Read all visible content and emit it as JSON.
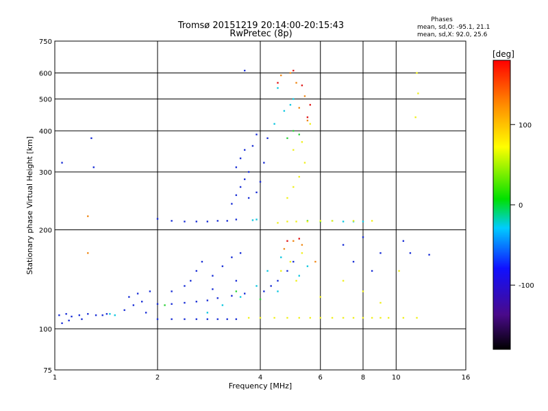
{
  "chart_data": {
    "type": "scatter",
    "title": "Tromsø 20151219 20:14:00-20:15:43",
    "subtitle": "RwPretec (8p)",
    "xlabel": "Frequency [MHz]",
    "ylabel": "Stationary phase Virtual Height [km]",
    "x_scale": "log",
    "y_scale": "log",
    "xlim": [
      1,
      16
    ],
    "ylim": [
      75,
      750
    ],
    "x_ticks": [
      1,
      2,
      4,
      6,
      8,
      10,
      16
    ],
    "y_ticks": [
      75,
      100,
      200,
      300,
      400,
      500,
      600,
      750
    ],
    "x_gridlines": [
      2,
      4,
      6,
      8,
      10
    ],
    "y_gridlines": [
      100,
      200,
      300,
      400,
      500,
      600
    ],
    "grid": true,
    "legend_placement": "top-right",
    "legend": {
      "title": "Phases",
      "lines": [
        "mean, sd,O: -95.1, 21.1",
        "mean, sd,X:  92.0, 25.6"
      ]
    },
    "colorbar": {
      "label": "[deg]",
      "range": [
        -180,
        180
      ],
      "ticks": [
        100,
        0,
        -100
      ],
      "colormap": "rainbow"
    },
    "series": [
      {
        "color": "#1a2fd6",
        "points": [
          [
            1.03,
            110
          ],
          [
            1.08,
            111
          ],
          [
            1.12,
            109
          ],
          [
            1.18,
            110
          ],
          [
            1.25,
            111
          ],
          [
            1.32,
            110
          ],
          [
            1.38,
            110
          ],
          [
            1.42,
            111
          ],
          [
            1.05,
            104
          ],
          [
            1.1,
            106
          ],
          [
            1.2,
            107
          ],
          [
            1.6,
            114
          ],
          [
            1.7,
            118
          ],
          [
            1.8,
            121
          ],
          [
            1.65,
            125
          ],
          [
            1.9,
            130
          ],
          [
            1.75,
            128
          ],
          [
            1.85,
            112
          ],
          [
            2.0,
            107
          ],
          [
            2.2,
            107
          ],
          [
            2.4,
            107
          ],
          [
            2.6,
            107
          ],
          [
            2.8,
            107
          ],
          [
            3.0,
            107
          ],
          [
            3.2,
            107
          ],
          [
            3.4,
            107
          ],
          [
            2.0,
            119
          ],
          [
            2.2,
            119
          ],
          [
            2.4,
            120
          ],
          [
            2.6,
            121
          ],
          [
            2.8,
            122
          ],
          [
            3.0,
            124
          ],
          [
            3.3,
            126
          ],
          [
            2.5,
            140
          ],
          [
            2.6,
            150
          ],
          [
            2.7,
            160
          ],
          [
            2.9,
            145
          ],
          [
            3.1,
            155
          ],
          [
            3.3,
            165
          ],
          [
            3.5,
            170
          ],
          [
            2.2,
            130
          ],
          [
            2.4,
            135
          ],
          [
            2.9,
            132
          ],
          [
            3.4,
            140
          ],
          [
            3.6,
            128
          ],
          [
            2.0,
            216
          ],
          [
            2.2,
            213
          ],
          [
            2.4,
            212
          ],
          [
            2.6,
            212
          ],
          [
            2.8,
            212
          ],
          [
            3.0,
            213
          ],
          [
            3.2,
            213
          ],
          [
            3.4,
            215
          ],
          [
            3.3,
            240
          ],
          [
            3.4,
            255
          ],
          [
            3.5,
            270
          ],
          [
            3.6,
            285
          ],
          [
            3.7,
            300
          ],
          [
            3.5,
            330
          ],
          [
            3.6,
            350
          ],
          [
            3.8,
            360
          ],
          [
            3.4,
            310
          ],
          [
            3.7,
            250
          ],
          [
            3.9,
            260
          ],
          [
            4.0,
            280
          ],
          [
            4.1,
            320
          ],
          [
            3.9,
            390
          ],
          [
            4.2,
            380
          ],
          [
            1.28,
            380
          ],
          [
            1.05,
            320
          ],
          [
            1.3,
            310
          ],
          [
            3.6,
            610
          ],
          [
            4.1,
            130
          ],
          [
            4.3,
            135
          ],
          [
            4.5,
            140
          ],
          [
            4.8,
            150
          ],
          [
            5.0,
            160
          ],
          [
            7.0,
            180
          ],
          [
            7.5,
            160
          ],
          [
            8.0,
            190
          ],
          [
            8.5,
            150
          ],
          [
            9.0,
            170
          ],
          [
            10.5,
            185
          ],
          [
            11.0,
            170
          ],
          [
            12.5,
            168
          ]
        ]
      },
      {
        "color": "#10c8e0",
        "points": [
          [
            1.45,
            111
          ],
          [
            1.5,
            110
          ],
          [
            2.8,
            112
          ],
          [
            3.1,
            118
          ],
          [
            3.5,
            125
          ],
          [
            3.9,
            135
          ],
          [
            4.2,
            150
          ],
          [
            4.6,
            165
          ],
          [
            4.4,
            420
          ],
          [
            4.7,
            460
          ],
          [
            5.0,
            500
          ],
          [
            4.5,
            540
          ],
          [
            4.9,
            480
          ],
          [
            6.5,
            213
          ],
          [
            7.0,
            212
          ],
          [
            7.5,
            212
          ],
          [
            8.0,
            212
          ],
          [
            3.8,
            214
          ],
          [
            3.9,
            215
          ],
          [
            4.5,
            130
          ],
          [
            5.2,
            145
          ],
          [
            5.5,
            155
          ]
        ]
      },
      {
        "color": "#2fd23c",
        "points": [
          [
            2.1,
            118
          ],
          [
            3.4,
            130
          ],
          [
            4.0,
            123
          ],
          [
            4.8,
            380
          ],
          [
            5.0,
            400
          ],
          [
            5.2,
            390
          ],
          [
            6.0,
            212
          ],
          [
            5.5,
            213
          ]
        ]
      },
      {
        "color": "#f0f020",
        "points": [
          [
            3.7,
            108
          ],
          [
            4.0,
            108
          ],
          [
            4.4,
            108
          ],
          [
            4.8,
            108
          ],
          [
            5.2,
            108
          ],
          [
            5.6,
            108
          ],
          [
            6.0,
            108
          ],
          [
            6.5,
            108
          ],
          [
            7.0,
            108
          ],
          [
            7.5,
            108
          ],
          [
            8.0,
            108
          ],
          [
            8.5,
            108
          ],
          [
            9.0,
            108
          ],
          [
            9.5,
            108
          ],
          [
            10.5,
            108
          ],
          [
            11.5,
            108
          ],
          [
            4.5,
            210
          ],
          [
            4.8,
            212
          ],
          [
            5.1,
            212
          ],
          [
            5.5,
            212
          ],
          [
            6.0,
            213
          ],
          [
            6.5,
            213
          ],
          [
            7.5,
            213
          ],
          [
            8.5,
            213
          ],
          [
            4.8,
            250
          ],
          [
            5.0,
            270
          ],
          [
            5.2,
            290
          ],
          [
            5.4,
            320
          ],
          [
            5.0,
            350
          ],
          [
            5.3,
            370
          ],
          [
            5.6,
            420
          ],
          [
            4.6,
            150
          ],
          [
            4.9,
            160
          ],
          [
            5.1,
            140
          ],
          [
            5.3,
            170
          ],
          [
            6.0,
            125
          ],
          [
            7.0,
            140
          ],
          [
            8.0,
            130
          ],
          [
            9.0,
            120
          ],
          [
            10.2,
            150
          ],
          [
            11.5,
            600
          ],
          [
            11.6,
            520
          ],
          [
            11.4,
            440
          ]
        ]
      },
      {
        "color": "#f08a1a",
        "points": [
          [
            1.25,
            220
          ],
          [
            1.25,
            170
          ],
          [
            4.6,
            590
          ],
          [
            4.9,
            600
          ],
          [
            5.1,
            560
          ],
          [
            5.4,
            510
          ],
          [
            5.2,
            470
          ],
          [
            4.7,
            175
          ],
          [
            5.0,
            185
          ],
          [
            5.3,
            180
          ],
          [
            5.8,
            160
          ],
          [
            5.5,
            430
          ]
        ]
      },
      {
        "color": "#e01a1a",
        "points": [
          [
            4.8,
            185
          ],
          [
            5.2,
            188
          ],
          [
            5.0,
            610
          ],
          [
            5.3,
            550
          ],
          [
            5.6,
            480
          ],
          [
            4.5,
            560
          ],
          [
            5.5,
            440
          ]
        ]
      }
    ]
  }
}
